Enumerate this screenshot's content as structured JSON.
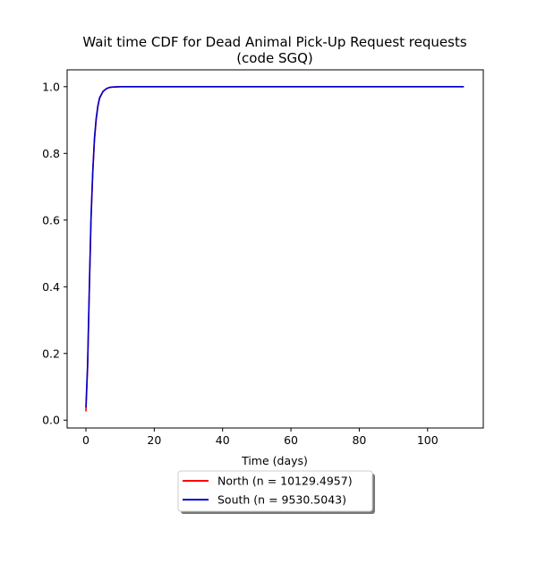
{
  "chart_data": {
    "type": "line",
    "title": "Wait time CDF for Dead Animal Pick-Up Request  requests",
    "subtitle": "(code SGQ)",
    "xlabel": "Time (days)",
    "ylabel": "",
    "xlim": [
      -5.5,
      116.3
    ],
    "ylim": [
      -0.0235,
      1.0505
    ],
    "xticks": [
      0,
      20,
      40,
      60,
      80,
      100
    ],
    "xtick_labels": [
      "0",
      "20",
      "40",
      "60",
      "80",
      "100"
    ],
    "yticks": [
      0.0,
      0.2,
      0.4,
      0.6,
      0.8,
      1.0
    ],
    "ytick_labels": [
      "0.0",
      "0.2",
      "0.4",
      "0.6",
      "0.8",
      "1.0"
    ],
    "grid": false,
    "legend_position": "below the plot, centered",
    "series": [
      {
        "name": "North (n = 10129.4957)",
        "color": "#ff0000",
        "x": [
          0,
          0.5,
          1,
          1.5,
          2,
          2.5,
          3,
          3.5,
          4,
          5,
          6,
          7,
          8,
          10,
          12,
          15,
          20,
          30,
          50,
          80,
          110.6
        ],
        "y": [
          0.026,
          0.16,
          0.39,
          0.6,
          0.74,
          0.84,
          0.9,
          0.94,
          0.965,
          0.985,
          0.994,
          0.998,
          0.999,
          1.0,
          1.0,
          1.0,
          1.0,
          1.0,
          1.0,
          1.0,
          1.0
        ]
      },
      {
        "name": "South (n = 9530.5043)",
        "color": "#0000cc",
        "x": [
          0,
          0.5,
          1,
          1.5,
          2,
          2.5,
          3,
          3.5,
          4,
          5,
          6,
          7,
          8,
          10,
          12,
          15,
          20,
          30,
          50,
          80,
          110.6
        ],
        "y": [
          0.038,
          0.17,
          0.4,
          0.61,
          0.745,
          0.845,
          0.905,
          0.943,
          0.967,
          0.986,
          0.994,
          0.998,
          0.999,
          1.0,
          1.0,
          1.0,
          1.0,
          1.0,
          1.0,
          1.0,
          1.0
        ]
      }
    ]
  }
}
